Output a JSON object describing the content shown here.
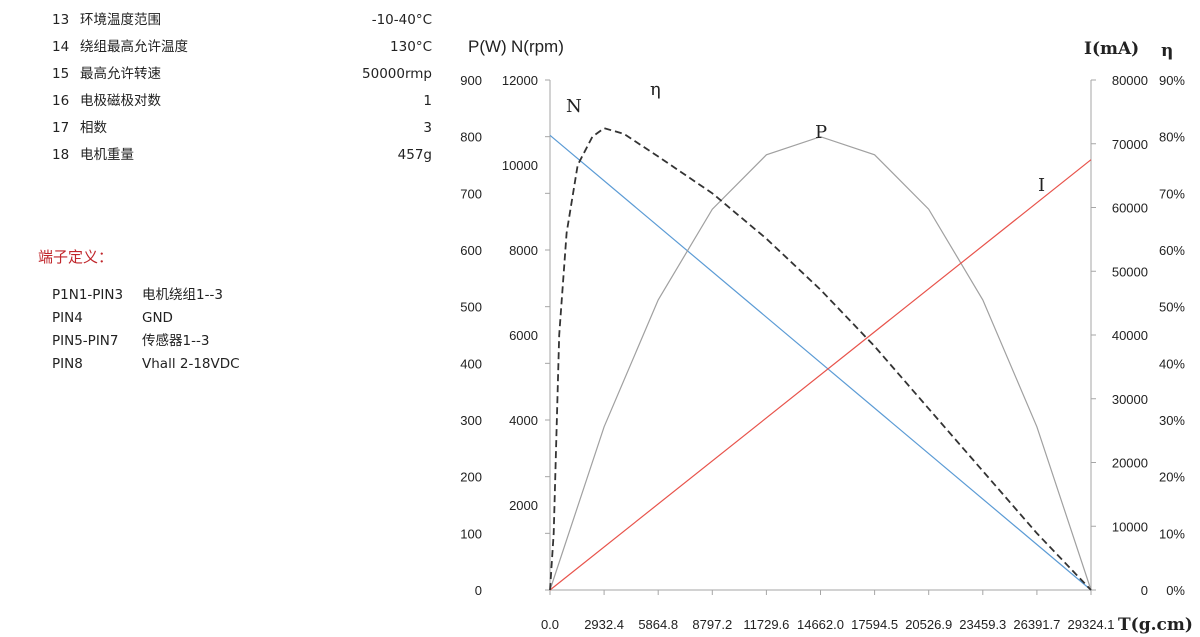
{
  "specs": [
    {
      "no": "13",
      "name": "环境温度范围",
      "value": "-10-40°C"
    },
    {
      "no": "14",
      "name": "绕组最高允许温度",
      "value": "130°C"
    },
    {
      "no": "15",
      "name": "最高允许转速",
      "value": "50000rmp"
    },
    {
      "no": "16",
      "name": "电极磁极对数",
      "value": "1"
    },
    {
      "no": "17",
      "name": "相数",
      "value": "3"
    },
    {
      "no": "18",
      "name": "电机重量",
      "value": "457g"
    }
  ],
  "terminal": {
    "heading": "端子定义：",
    "pins": [
      {
        "pin": "P1N1-PIN3",
        "desc": "电机绕组1--3"
      },
      {
        "pin": "PIN4",
        "desc": "GND"
      },
      {
        "pin": "PIN5-PIN7",
        "desc": "传感器1--3"
      },
      {
        "pin": "PIN8",
        "desc": "Vhall  2-18VDC"
      }
    ]
  },
  "chart_data": {
    "type": "line",
    "axes": {
      "left_power": {
        "title": "P(W)",
        "ticks": [
          "900",
          "800",
          "700",
          "600",
          "500",
          "400",
          "300",
          "200",
          "100",
          "0"
        ],
        "range": [
          0,
          900
        ]
      },
      "left_speed": {
        "title": "N(rpm)",
        "ticks": [
          "12000",
          "10000",
          "8000",
          "6000",
          "4000",
          "2000"
        ],
        "range": [
          0,
          12000
        ]
      },
      "right_current": {
        "title": "I(mA)",
        "ticks": [
          "80000",
          "70000",
          "60000",
          "50000",
          "40000",
          "30000",
          "20000",
          "10000",
          "0"
        ],
        "range": [
          0,
          80000
        ]
      },
      "right_efficiency": {
        "title": "η",
        "ticks": [
          "90%",
          "80%",
          "70%",
          "60%",
          "50%",
          "40%",
          "30%",
          "20%",
          "10%",
          "0%"
        ],
        "range": [
          0,
          90
        ]
      },
      "x_torque": {
        "title": "T(g.cm)",
        "ticks": [
          "0.0",
          "2932.4",
          "5864.8",
          "8797.2",
          "11729.6",
          "14662.0",
          "17594.5",
          "20526.9",
          "23459.3",
          "26391.7",
          "29324.1"
        ],
        "range": [
          0,
          29324.1
        ]
      }
    },
    "series": [
      {
        "name": "N",
        "color": "#5b9bd5",
        "dash": false,
        "axis": "left_speed",
        "x": [
          0,
          29324.1
        ],
        "values": [
          10700,
          0
        ]
      },
      {
        "name": "P",
        "color": "#a0a0a0",
        "dash": false,
        "axis": "left_power",
        "x": [
          0,
          2932.4,
          5864.8,
          8797.2,
          11729.6,
          14662.0,
          17594.5,
          20526.9,
          23459.3,
          26391.7,
          29324.1
        ],
        "values": [
          0,
          288,
          512,
          672,
          768,
          800,
          768,
          672,
          512,
          288,
          0
        ]
      },
      {
        "name": "I",
        "color": "#e8534b",
        "dash": false,
        "axis": "right_current",
        "x": [
          0,
          29324.1
        ],
        "values": [
          0,
          67500
        ]
      },
      {
        "name": "η",
        "color": "#333333",
        "dash": true,
        "axis": "right_efficiency",
        "x": [
          0,
          200,
          500,
          900,
          1500,
          2300,
          2932.4,
          4000,
          5864.8,
          8797.2,
          11729.6,
          14662.0,
          17594.5,
          20526.9,
          23459.3,
          26391.7,
          29324.1
        ],
        "values": [
          0,
          10,
          45,
          63,
          75,
          80,
          81.5,
          80.5,
          76.5,
          70,
          62,
          53,
          43,
          32,
          21,
          10,
          0
        ]
      }
    ]
  }
}
